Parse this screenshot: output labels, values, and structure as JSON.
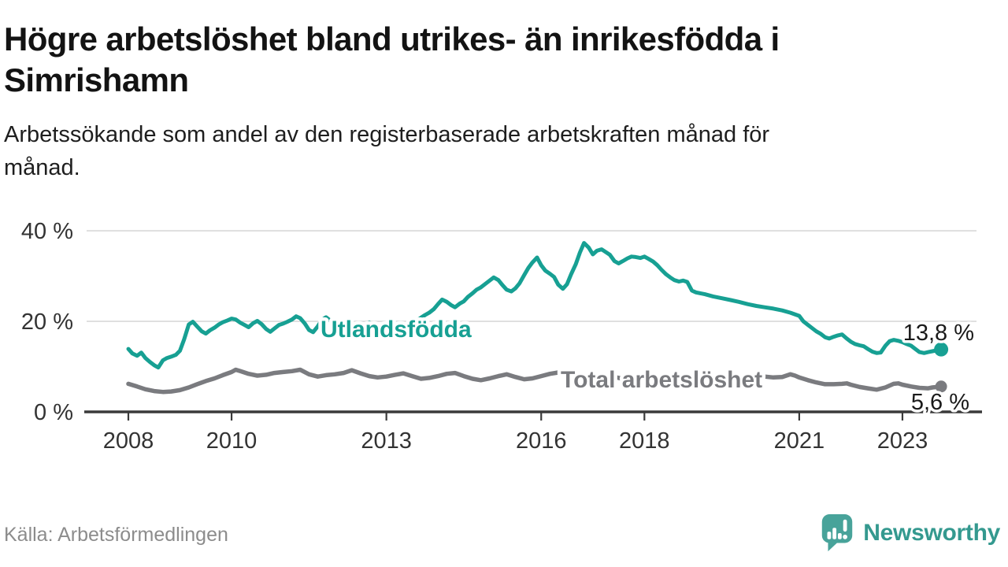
{
  "header": {
    "title_lines": [
      "Högre arbetslöshet bland utrikes- än inrikesfödda i",
      "Simrishamn"
    ],
    "subtitle_lines": [
      "Arbetssökande som andel av den registerbaserade arbetskraften månad för",
      "månad."
    ]
  },
  "footer": {
    "source": "Källa: Arbetsförmedlingen",
    "brand": "Newsworthy",
    "brand_color": "#34998f",
    "logo_icon": "speech-bubble-with-bar-chart-and-exclamation",
    "logo_color": "#48a39a"
  },
  "chart_data": {
    "type": "line",
    "unit": "%",
    "grid": true,
    "legend_position": "inline-labels-on-lines",
    "x_axis": {
      "range": [
        2007.2,
        2024.4
      ],
      "ticks": [
        "2008",
        "2010",
        "2013",
        "2016",
        "2018",
        "2021",
        "2023"
      ],
      "tick_years": [
        2008,
        2010,
        2013,
        2016,
        2018,
        2021,
        2023
      ]
    },
    "y_axis": {
      "range": [
        0,
        40
      ],
      "ticks": [
        {
          "value": 0,
          "label": "0 %"
        },
        {
          "value": 20,
          "label": "20 %"
        },
        {
          "value": 40,
          "label": "40 %"
        }
      ]
    },
    "colors": {
      "gridline": "#d9d9d9",
      "axis": "#3a3a3a",
      "tick_text": "#333333",
      "value_label_text": "#1a1a1a"
    },
    "series": [
      {
        "name": "Utlandsfödda",
        "color": "#17a093",
        "end_label": "13,8 %",
        "end_value": 13.8,
        "points": [
          [
            2008.0,
            13.9
          ],
          [
            2008.08,
            12.9
          ],
          [
            2008.17,
            12.4
          ],
          [
            2008.25,
            13.1
          ],
          [
            2008.33,
            11.9
          ],
          [
            2008.42,
            11.0
          ],
          [
            2008.5,
            10.3
          ],
          [
            2008.58,
            9.8
          ],
          [
            2008.67,
            11.4
          ],
          [
            2008.75,
            11.9
          ],
          [
            2008.83,
            12.2
          ],
          [
            2008.92,
            12.6
          ],
          [
            2009.0,
            13.5
          ],
          [
            2009.08,
            16.0
          ],
          [
            2009.17,
            19.3
          ],
          [
            2009.25,
            19.9
          ],
          [
            2009.33,
            18.9
          ],
          [
            2009.42,
            17.8
          ],
          [
            2009.5,
            17.3
          ],
          [
            2009.58,
            18.0
          ],
          [
            2009.67,
            18.6
          ],
          [
            2009.75,
            19.3
          ],
          [
            2009.83,
            19.8
          ],
          [
            2009.92,
            20.2
          ],
          [
            2010.0,
            20.6
          ],
          [
            2010.08,
            20.4
          ],
          [
            2010.17,
            19.7
          ],
          [
            2010.25,
            19.2
          ],
          [
            2010.33,
            18.7
          ],
          [
            2010.42,
            19.6
          ],
          [
            2010.5,
            20.1
          ],
          [
            2010.58,
            19.4
          ],
          [
            2010.67,
            18.3
          ],
          [
            2010.75,
            17.7
          ],
          [
            2010.83,
            18.4
          ],
          [
            2010.92,
            19.2
          ],
          [
            2011.0,
            19.5
          ],
          [
            2011.08,
            19.9
          ],
          [
            2011.17,
            20.4
          ],
          [
            2011.25,
            21.1
          ],
          [
            2011.33,
            20.7
          ],
          [
            2011.42,
            19.5
          ],
          [
            2011.5,
            18.1
          ],
          [
            2011.58,
            17.6
          ],
          [
            2011.67,
            18.9
          ],
          [
            2011.75,
            20.3
          ],
          [
            2011.83,
            20.9
          ],
          [
            2011.92,
            20.1
          ],
          [
            2012.0,
            19.6
          ],
          [
            2012.08,
            19.2
          ],
          [
            2012.17,
            19.8
          ],
          [
            2012.25,
            20.3
          ],
          [
            2012.33,
            19.4
          ],
          [
            2012.42,
            18.2
          ],
          [
            2012.5,
            17.4
          ],
          [
            2012.58,
            18.5
          ],
          [
            2012.67,
            19.7
          ],
          [
            2012.75,
            18.6
          ],
          [
            2012.83,
            17.5
          ],
          [
            2012.92,
            17.9
          ],
          [
            2013.0,
            18.4
          ],
          [
            2013.08,
            18.8
          ],
          [
            2013.17,
            17.9
          ],
          [
            2013.25,
            17.1
          ],
          [
            2013.33,
            17.6
          ],
          [
            2013.42,
            18.8
          ],
          [
            2013.5,
            19.5
          ],
          [
            2013.58,
            20.1
          ],
          [
            2013.67,
            20.8
          ],
          [
            2013.75,
            21.4
          ],
          [
            2013.83,
            21.9
          ],
          [
            2013.92,
            22.7
          ],
          [
            2014.0,
            23.8
          ],
          [
            2014.08,
            24.8
          ],
          [
            2014.17,
            24.3
          ],
          [
            2014.25,
            23.6
          ],
          [
            2014.33,
            23.1
          ],
          [
            2014.42,
            23.9
          ],
          [
            2014.5,
            24.4
          ],
          [
            2014.58,
            25.4
          ],
          [
            2014.67,
            26.2
          ],
          [
            2014.75,
            27.0
          ],
          [
            2014.83,
            27.5
          ],
          [
            2014.92,
            28.3
          ],
          [
            2015.0,
            29.0
          ],
          [
            2015.08,
            29.7
          ],
          [
            2015.17,
            29.1
          ],
          [
            2015.25,
            28.0
          ],
          [
            2015.33,
            27.0
          ],
          [
            2015.42,
            26.6
          ],
          [
            2015.5,
            27.3
          ],
          [
            2015.58,
            28.4
          ],
          [
            2015.67,
            30.2
          ],
          [
            2015.75,
            31.8
          ],
          [
            2015.83,
            33.0
          ],
          [
            2015.92,
            34.1
          ],
          [
            2016.0,
            32.4
          ],
          [
            2016.08,
            31.2
          ],
          [
            2016.17,
            30.5
          ],
          [
            2016.25,
            29.8
          ],
          [
            2016.33,
            28.1
          ],
          [
            2016.42,
            27.2
          ],
          [
            2016.5,
            28.2
          ],
          [
            2016.58,
            30.4
          ],
          [
            2016.67,
            32.6
          ],
          [
            2016.75,
            35.2
          ],
          [
            2016.83,
            37.3
          ],
          [
            2016.92,
            36.3
          ],
          [
            2017.0,
            34.8
          ],
          [
            2017.08,
            35.6
          ],
          [
            2017.17,
            35.9
          ],
          [
            2017.25,
            35.3
          ],
          [
            2017.33,
            34.7
          ],
          [
            2017.42,
            33.3
          ],
          [
            2017.5,
            32.8
          ],
          [
            2017.58,
            33.3
          ],
          [
            2017.67,
            33.9
          ],
          [
            2017.75,
            34.3
          ],
          [
            2017.83,
            34.2
          ],
          [
            2017.92,
            34.0
          ],
          [
            2018.0,
            34.3
          ],
          [
            2018.08,
            33.8
          ],
          [
            2018.17,
            33.2
          ],
          [
            2018.25,
            32.4
          ],
          [
            2018.33,
            31.4
          ],
          [
            2018.42,
            30.4
          ],
          [
            2018.5,
            29.7
          ],
          [
            2018.58,
            29.1
          ],
          [
            2018.67,
            28.8
          ],
          [
            2018.75,
            29.0
          ],
          [
            2018.83,
            28.7
          ],
          [
            2018.92,
            26.8
          ],
          [
            2019.0,
            26.4
          ],
          [
            2019.17,
            26.0
          ],
          [
            2019.33,
            25.5
          ],
          [
            2019.5,
            25.1
          ],
          [
            2019.67,
            24.7
          ],
          [
            2019.83,
            24.3
          ],
          [
            2020.0,
            23.8
          ],
          [
            2020.17,
            23.4
          ],
          [
            2020.33,
            23.1
          ],
          [
            2020.5,
            22.8
          ],
          [
            2020.67,
            22.4
          ],
          [
            2020.83,
            21.9
          ],
          [
            2021.0,
            21.2
          ],
          [
            2021.08,
            20.0
          ],
          [
            2021.17,
            19.2
          ],
          [
            2021.25,
            18.5
          ],
          [
            2021.33,
            17.8
          ],
          [
            2021.42,
            17.2
          ],
          [
            2021.5,
            16.5
          ],
          [
            2021.58,
            16.2
          ],
          [
            2021.67,
            16.6
          ],
          [
            2021.75,
            16.9
          ],
          [
            2021.83,
            17.1
          ],
          [
            2021.92,
            16.2
          ],
          [
            2022.0,
            15.5
          ],
          [
            2022.08,
            15.0
          ],
          [
            2022.17,
            14.7
          ],
          [
            2022.25,
            14.5
          ],
          [
            2022.33,
            13.9
          ],
          [
            2022.42,
            13.3
          ],
          [
            2022.5,
            13.0
          ],
          [
            2022.58,
            13.1
          ],
          [
            2022.67,
            14.6
          ],
          [
            2022.75,
            15.6
          ],
          [
            2022.83,
            15.9
          ],
          [
            2022.92,
            15.7
          ],
          [
            2023.0,
            15.4
          ],
          [
            2023.08,
            15.0
          ],
          [
            2023.17,
            14.6
          ],
          [
            2023.25,
            13.9
          ],
          [
            2023.33,
            13.2
          ],
          [
            2023.42,
            13.0
          ],
          [
            2023.5,
            13.2
          ],
          [
            2023.58,
            13.4
          ],
          [
            2023.67,
            13.6
          ],
          [
            2023.75,
            13.8
          ]
        ]
      },
      {
        "name": "Total arbetslöshet",
        "color": "#7a7b7f",
        "end_label": "5,6 %",
        "end_value": 5.6,
        "points": [
          [
            2008.0,
            6.2
          ],
          [
            2008.17,
            5.6
          ],
          [
            2008.33,
            5.0
          ],
          [
            2008.5,
            4.6
          ],
          [
            2008.67,
            4.4
          ],
          [
            2008.83,
            4.5
          ],
          [
            2009.0,
            4.8
          ],
          [
            2009.17,
            5.4
          ],
          [
            2009.33,
            6.1
          ],
          [
            2009.5,
            6.8
          ],
          [
            2009.67,
            7.4
          ],
          [
            2009.83,
            8.1
          ],
          [
            2010.0,
            8.8
          ],
          [
            2010.08,
            9.3
          ],
          [
            2010.17,
            9.0
          ],
          [
            2010.33,
            8.4
          ],
          [
            2010.5,
            8.0
          ],
          [
            2010.67,
            8.2
          ],
          [
            2010.83,
            8.6
          ],
          [
            2011.0,
            8.8
          ],
          [
            2011.17,
            9.0
          ],
          [
            2011.33,
            9.3
          ],
          [
            2011.5,
            8.3
          ],
          [
            2011.67,
            7.8
          ],
          [
            2011.83,
            8.1
          ],
          [
            2012.0,
            8.3
          ],
          [
            2012.17,
            8.6
          ],
          [
            2012.33,
            9.2
          ],
          [
            2012.5,
            8.5
          ],
          [
            2012.67,
            7.9
          ],
          [
            2012.83,
            7.6
          ],
          [
            2013.0,
            7.8
          ],
          [
            2013.17,
            8.2
          ],
          [
            2013.33,
            8.5
          ],
          [
            2013.5,
            7.9
          ],
          [
            2013.67,
            7.3
          ],
          [
            2013.83,
            7.5
          ],
          [
            2014.0,
            7.9
          ],
          [
            2014.17,
            8.4
          ],
          [
            2014.33,
            8.6
          ],
          [
            2014.5,
            7.9
          ],
          [
            2014.67,
            7.3
          ],
          [
            2014.83,
            7.0
          ],
          [
            2015.0,
            7.4
          ],
          [
            2015.17,
            7.9
          ],
          [
            2015.33,
            8.3
          ],
          [
            2015.5,
            7.7
          ],
          [
            2015.67,
            7.2
          ],
          [
            2015.83,
            7.4
          ],
          [
            2016.0,
            7.9
          ],
          [
            2016.17,
            8.4
          ],
          [
            2016.33,
            8.7
          ],
          [
            2016.5,
            8.2
          ],
          [
            2016.67,
            7.8
          ],
          [
            2016.83,
            7.6
          ],
          [
            2017.0,
            7.9
          ],
          [
            2017.17,
            8.3
          ],
          [
            2017.33,
            8.0
          ],
          [
            2017.5,
            7.5
          ],
          [
            2017.67,
            7.2
          ],
          [
            2017.83,
            7.4
          ],
          [
            2018.0,
            7.7
          ],
          [
            2018.17,
            7.9
          ],
          [
            2018.33,
            7.5
          ],
          [
            2018.5,
            7.1
          ],
          [
            2018.67,
            6.9
          ],
          [
            2018.83,
            7.0
          ],
          [
            2019.0,
            7.2
          ],
          [
            2019.17,
            7.4
          ],
          [
            2019.33,
            7.1
          ],
          [
            2019.5,
            6.8
          ],
          [
            2019.67,
            6.7
          ],
          [
            2019.83,
            6.9
          ],
          [
            2020.0,
            7.1
          ],
          [
            2020.17,
            7.4
          ],
          [
            2020.33,
            7.8
          ],
          [
            2020.5,
            7.6
          ],
          [
            2020.67,
            7.7
          ],
          [
            2020.83,
            8.3
          ],
          [
            2020.92,
            8.0
          ],
          [
            2021.0,
            7.6
          ],
          [
            2021.17,
            7.0
          ],
          [
            2021.33,
            6.5
          ],
          [
            2021.5,
            6.1
          ],
          [
            2021.67,
            6.1
          ],
          [
            2021.83,
            6.2
          ],
          [
            2021.92,
            6.3
          ],
          [
            2022.0,
            6.0
          ],
          [
            2022.17,
            5.5
          ],
          [
            2022.33,
            5.2
          ],
          [
            2022.5,
            4.9
          ],
          [
            2022.67,
            5.4
          ],
          [
            2022.83,
            6.2
          ],
          [
            2022.92,
            6.3
          ],
          [
            2023.0,
            6.0
          ],
          [
            2023.17,
            5.6
          ],
          [
            2023.33,
            5.3
          ],
          [
            2023.5,
            5.2
          ],
          [
            2023.58,
            5.4
          ],
          [
            2023.67,
            5.5
          ],
          [
            2023.75,
            5.6
          ]
        ]
      }
    ]
  }
}
